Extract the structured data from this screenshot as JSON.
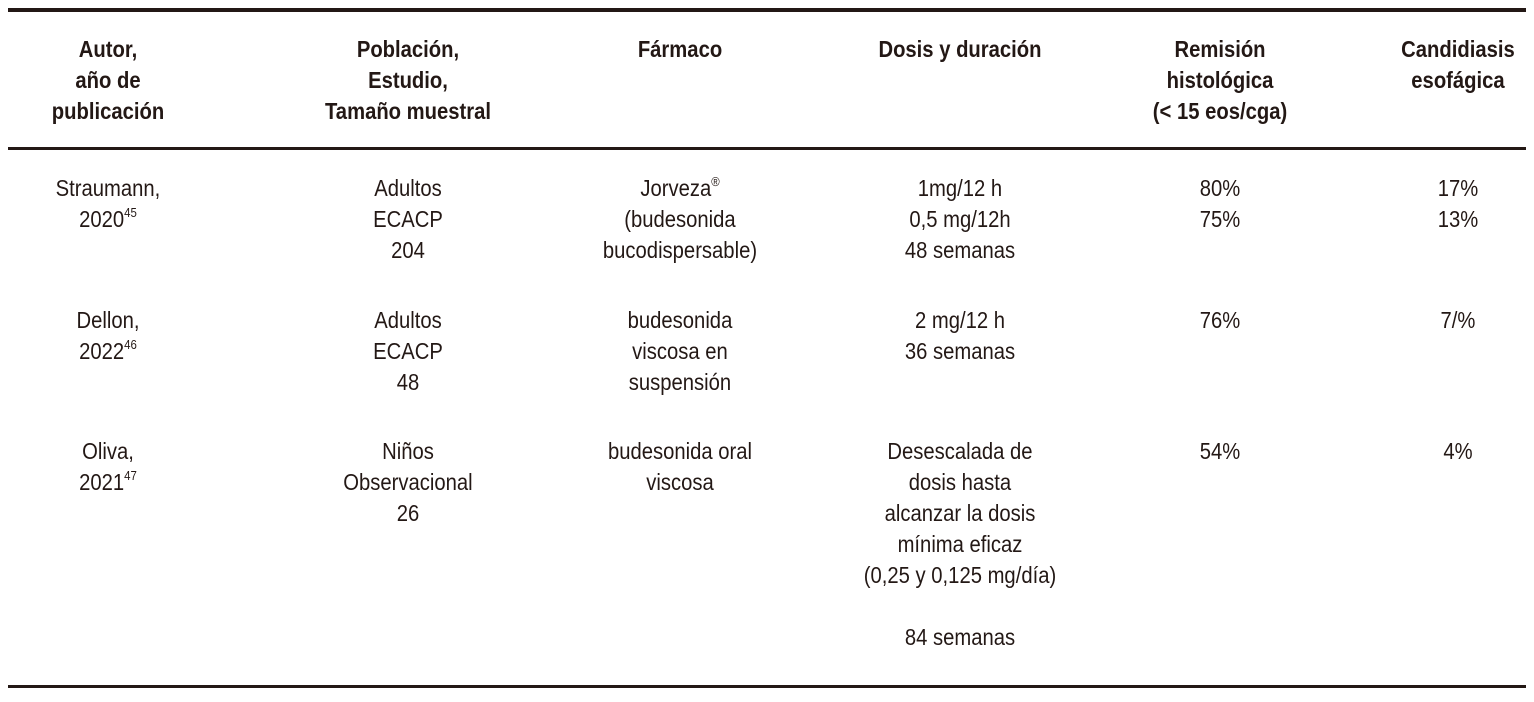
{
  "table": {
    "headers": [
      [
        "Autor,",
        "año de",
        "publicación"
      ],
      [
        "Población,",
        "Estudio,",
        "Tamaño muestral"
      ],
      [
        "Fármaco"
      ],
      [
        "Dosis y duración"
      ],
      [
        "Remisión",
        "histológica",
        "(< 15 eos/cga)"
      ],
      [
        "Candidiasis",
        "esofágica"
      ]
    ],
    "rows": [
      {
        "autor": [
          "Straumann,",
          "2020"
        ],
        "ref": "45",
        "poblacion": [
          "Adultos",
          "ECACP",
          "204"
        ],
        "farmaco": [
          "Jorveza®",
          "(budesonida",
          "bucodispersable)"
        ],
        "dosis": [
          "1mg/12 h",
          "0,5 mg/12h",
          "48 semanas"
        ],
        "remision": [
          "80%",
          "75%"
        ],
        "candidiasis": [
          "17%",
          "13%"
        ]
      },
      {
        "autor": [
          "Dellon,",
          "2022"
        ],
        "ref": "46",
        "poblacion": [
          "Adultos",
          "ECACP",
          "48"
        ],
        "farmaco": [
          "budesonida",
          "viscosa en",
          "suspensión"
        ],
        "dosis": [
          "2 mg/12 h",
          "36 semanas"
        ],
        "remision": [
          "76%"
        ],
        "candidiasis": [
          "7/%"
        ]
      },
      {
        "autor": [
          "Oliva,",
          "2021"
        ],
        "ref": "47",
        "poblacion": [
          "Niños",
          "Observacional",
          "26"
        ],
        "farmaco": [
          "budesonida oral",
          "viscosa"
        ],
        "dosis": [
          "Desescalada de",
          "dosis hasta",
          "alcanzar la dosis",
          "mínima eficaz",
          "(0,25 y 0,125 mg/día)",
          "",
          "84 semanas"
        ],
        "remision": [
          "54%"
        ],
        "candidiasis": [
          "4%"
        ]
      }
    ]
  }
}
